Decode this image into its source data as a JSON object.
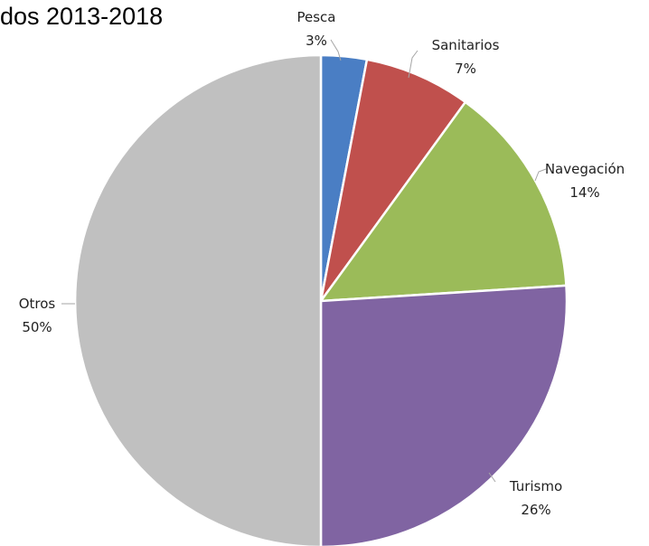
{
  "chart_data": {
    "type": "pie",
    "title": "dos 2013-2018",
    "start_angle_deg": 0,
    "direction": "clockwise",
    "slices": [
      {
        "label": "Pesca",
        "value": 3,
        "value_label": "3%",
        "color": "#4a7ec4"
      },
      {
        "label": "Sanitarios",
        "value": 7,
        "value_label": "7%",
        "color": "#c0504d"
      },
      {
        "label": "Navegación",
        "value": 14,
        "value_label": "14%",
        "color": "#9bbb59"
      },
      {
        "label": "Turismo",
        "value": 26,
        "value_label": "26%",
        "color": "#8064a2"
      },
      {
        "label": "Otros",
        "value": 50,
        "value_label": "50%",
        "color": "#c0c0c0"
      }
    ]
  }
}
